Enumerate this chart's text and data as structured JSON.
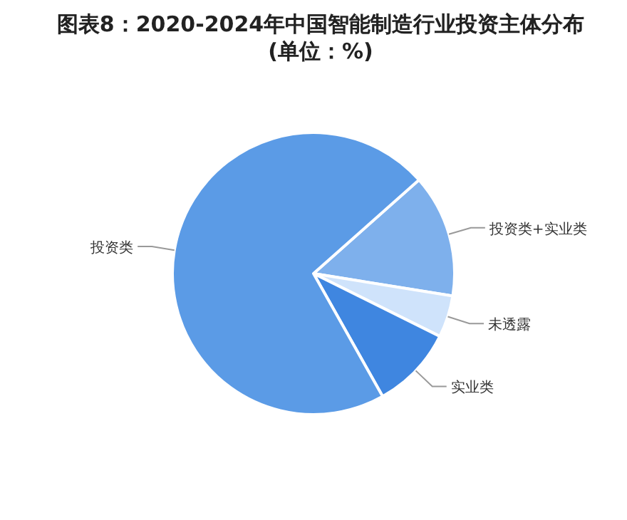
{
  "chart_data": {
    "type": "pie",
    "title": "图表8：2020-2024年中国智能制造行业投资主体分布(单位：%)",
    "categories": [
      "投资类+实业类",
      "未透露",
      "实业类",
      "投资类"
    ],
    "values": [
      14.1,
      4.8,
      9.5,
      71.6
    ],
    "colors": [
      "#7eb0ec",
      "#cfe3fb",
      "#3f86e0",
      "#5b9be6"
    ],
    "legend": false
  }
}
